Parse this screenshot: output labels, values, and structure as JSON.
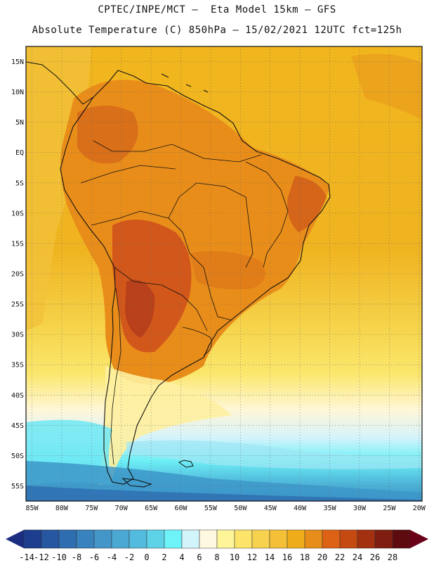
{
  "header": {
    "line1": "CPTEC/INPE/MCT –  Eta Model 15km – GFS",
    "line2": "Absolute Temperature (C) 850hPa – 15/02/2021 12UTC fct=125h"
  },
  "map": {
    "lat_labels": [
      "15N",
      "10N",
      "5N",
      "EQ",
      "5S",
      "10S",
      "15S",
      "20S",
      "25S",
      "30S",
      "35S",
      "40S",
      "45S",
      "50S",
      "55S"
    ],
    "lat_values": [
      15,
      10,
      5,
      0,
      -5,
      -10,
      -15,
      -20,
      -25,
      -30,
      -35,
      -40,
      -45,
      -50,
      -55
    ],
    "lon_labels": [
      "85W",
      "80W",
      "75W",
      "70W",
      "65W",
      "60W",
      "55W",
      "50W",
      "45W",
      "40W",
      "35W",
      "30W",
      "25W",
      "20W"
    ],
    "lon_values": [
      -85,
      -80,
      -75,
      -70,
      -65,
      -60,
      -55,
      -50,
      -45,
      -40,
      -35,
      -30,
      -25,
      -20
    ],
    "lat_range": [
      -57.5,
      17.5
    ],
    "lon_range": [
      -86,
      -19.5
    ],
    "gridlines": "dotted"
  },
  "colorbar": {
    "labels": [
      "-14",
      "-12",
      "-10",
      "-8",
      "-6",
      "-4",
      "-2",
      "0",
      "2",
      "4",
      "6",
      "8",
      "10",
      "12",
      "14",
      "16",
      "18",
      "20",
      "22",
      "24",
      "26",
      "28"
    ],
    "colors": [
      "#1d3d8f",
      "#2757a0",
      "#2e6db0",
      "#3882bd",
      "#4495c8",
      "#4aa8d3",
      "#53bbdd",
      "#5ed3e8",
      "#6ef3f8",
      "#d2f4fb",
      "#fff8e0",
      "#fef599",
      "#fbe469",
      "#f7d24e",
      "#f3c037",
      "#efad1b",
      "#e68e19",
      "#dd6215",
      "#c44a12",
      "#a3300f",
      "#7f1d10",
      "#5e0b0f"
    ],
    "low_arrow_color": "#1b2d80",
    "high_arrow_color": "#6a0018"
  }
}
